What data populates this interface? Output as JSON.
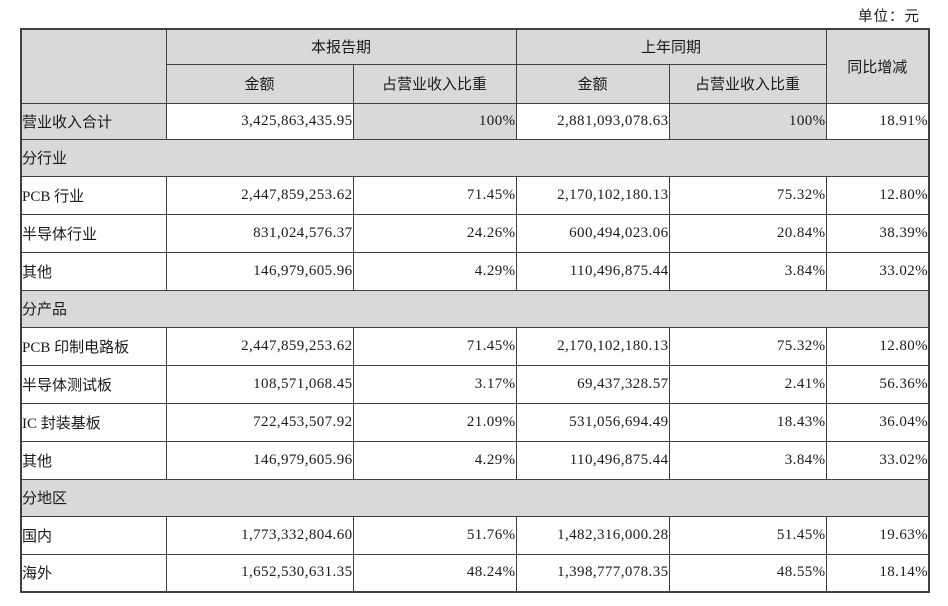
{
  "unit_label": "单位：元",
  "colors": {
    "shaded_bg": "#d9d9d9",
    "border": "#404040",
    "text": "#1a1a1a",
    "page_bg": "#ffffff"
  },
  "table": {
    "headers": {
      "current_period": "本报告期",
      "prior_period": "上年同期",
      "yoy_change": "同比增减",
      "amount": "金额",
      "revenue_share": "占营业收入比重"
    },
    "rows": [
      {
        "type": "data",
        "variant": "total",
        "label": "营业收入合计",
        "cur_amount": "3,425,863,435.95",
        "cur_share": "100%",
        "prior_amount": "2,881,093,078.63",
        "prior_share": "100%",
        "yoy": "18.91%"
      },
      {
        "type": "section",
        "label": "分行业"
      },
      {
        "type": "data",
        "label": "PCB 行业",
        "cur_amount": "2,447,859,253.62",
        "cur_share": "71.45%",
        "prior_amount": "2,170,102,180.13",
        "prior_share": "75.32%",
        "yoy": "12.80%"
      },
      {
        "type": "data",
        "label": "半导体行业",
        "cur_amount": "831,024,576.37",
        "cur_share": "24.26%",
        "prior_amount": "600,494,023.06",
        "prior_share": "20.84%",
        "yoy": "38.39%"
      },
      {
        "type": "data",
        "label": "其他",
        "cur_amount": "146,979,605.96",
        "cur_share": "4.29%",
        "prior_amount": "110,496,875.44",
        "prior_share": "3.84%",
        "yoy": "33.02%"
      },
      {
        "type": "section",
        "label": "分产品"
      },
      {
        "type": "data",
        "label": "PCB 印制电路板",
        "cur_amount": "2,447,859,253.62",
        "cur_share": "71.45%",
        "prior_amount": "2,170,102,180.13",
        "prior_share": "75.32%",
        "yoy": "12.80%"
      },
      {
        "type": "data",
        "label": "半导体测试板",
        "cur_amount": "108,571,068.45",
        "cur_share": "3.17%",
        "prior_amount": "69,437,328.57",
        "prior_share": "2.41%",
        "yoy": "56.36%"
      },
      {
        "type": "data",
        "label": "IC 封装基板",
        "cur_amount": "722,453,507.92",
        "cur_share": "21.09%",
        "prior_amount": "531,056,694.49",
        "prior_share": "18.43%",
        "yoy": "36.04%"
      },
      {
        "type": "data",
        "label": "其他",
        "cur_amount": "146,979,605.96",
        "cur_share": "4.29%",
        "prior_amount": "110,496,875.44",
        "prior_share": "3.84%",
        "yoy": "33.02%"
      },
      {
        "type": "section",
        "label": "分地区"
      },
      {
        "type": "data",
        "label": "国内",
        "cur_amount": "1,773,332,804.60",
        "cur_share": "51.76%",
        "prior_amount": "1,482,316,000.28",
        "prior_share": "51.45%",
        "yoy": "19.63%"
      },
      {
        "type": "data",
        "label": "海外",
        "cur_amount": "1,652,530,631.35",
        "cur_share": "48.24%",
        "prior_amount": "1,398,777,078.35",
        "prior_share": "48.55%",
        "yoy": "18.14%"
      }
    ]
  }
}
